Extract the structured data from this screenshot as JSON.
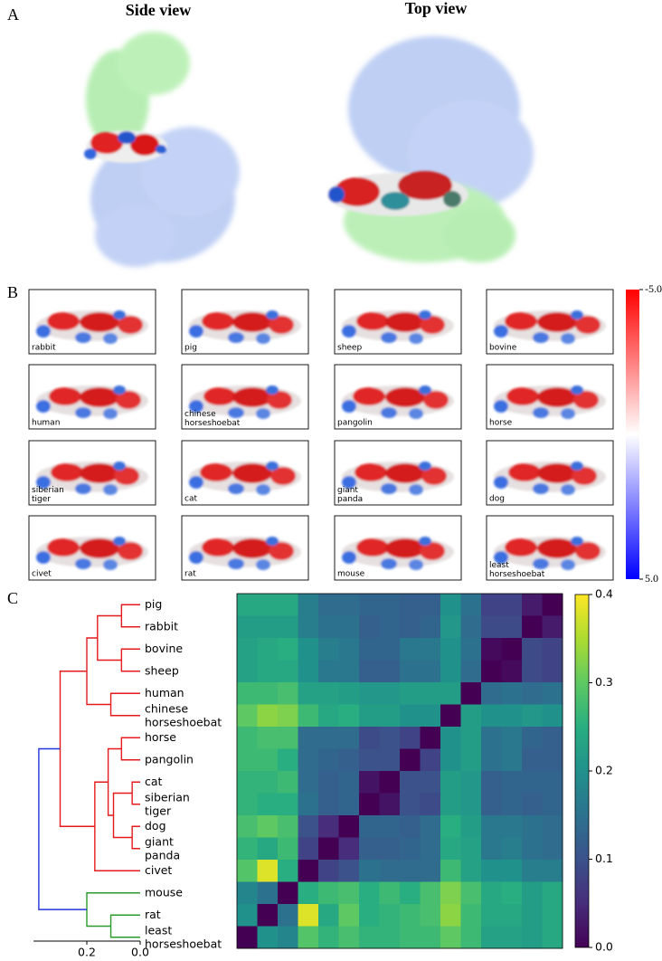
{
  "panel_a": {
    "label": "A",
    "views": [
      "Side view",
      "Top view"
    ]
  },
  "panel_b": {
    "label": "B",
    "species": [
      "rabbit",
      "pig",
      "sheep",
      "bovine",
      "human",
      "chinese horseshoebat",
      "pangolin",
      "horse",
      "siberian tiger",
      "cat",
      "giant panda",
      "dog",
      "civet",
      "rat",
      "mouse",
      "least horseshoebat"
    ],
    "colorbar": {
      "lim": [
        -5,
        5
      ],
      "colors": [
        "#ff0000",
        "#ffffff",
        "#0000ff"
      ],
      "ticks": [
        {
          "value": -5,
          "label": "-5.0"
        },
        {
          "value": 5,
          "label": "5.0"
        }
      ]
    }
  },
  "panel_c": {
    "label": "C"
  },
  "chart_data": [
    {
      "type": "heatmap",
      "colormap": "viridis",
      "rows": [
        "pig",
        "rabbit",
        "bovine",
        "sheep",
        "human",
        "chinese horseshoebat",
        "horse",
        "pangolin",
        "cat",
        "siberian tiger",
        "dog",
        "giant panda",
        "civet",
        "mouse",
        "rat",
        "least horseshoebat"
      ],
      "values": [
        [
          0.24,
          0.24,
          0.24,
          0.17,
          0.14,
          0.14,
          0.13,
          0.13,
          0.12,
          0.12,
          0.2,
          0.15,
          0.08,
          0.08,
          0.03,
          0
        ],
        [
          0.22,
          0.22,
          0.22,
          0.17,
          0.15,
          0.15,
          0.12,
          0.13,
          0.12,
          0.13,
          0.21,
          0.14,
          0.09,
          0.09,
          0,
          0.03
        ],
        [
          0.23,
          0.24,
          0.25,
          0.2,
          0.17,
          0.16,
          0.13,
          0.13,
          0.16,
          0.16,
          0.2,
          0.15,
          0.01,
          0,
          0.09,
          0.08
        ],
        [
          0.23,
          0.24,
          0.24,
          0.2,
          0.16,
          0.16,
          0.12,
          0.12,
          0.15,
          0.15,
          0.2,
          0.14,
          0,
          0.01,
          0.09,
          0.08
        ],
        [
          0.27,
          0.27,
          0.28,
          0.23,
          0.23,
          0.22,
          0.21,
          0.21,
          0.22,
          0.22,
          0.22,
          0,
          0.14,
          0.15,
          0.14,
          0.15
        ],
        [
          0.3,
          0.33,
          0.32,
          0.27,
          0.24,
          0.25,
          0.22,
          0.22,
          0.2,
          0.2,
          0,
          0.22,
          0.2,
          0.2,
          0.21,
          0.2
        ],
        [
          0.27,
          0.28,
          0.28,
          0.14,
          0.14,
          0.14,
          0.09,
          0.1,
          0.08,
          0,
          0.2,
          0.22,
          0.15,
          0.16,
          0.13,
          0.12
        ],
        [
          0.27,
          0.27,
          0.25,
          0.14,
          0.13,
          0.12,
          0.1,
          0.1,
          0,
          0.08,
          0.2,
          0.22,
          0.15,
          0.16,
          0.12,
          0.12
        ],
        [
          0.26,
          0.26,
          0.27,
          0.14,
          0.12,
          0.13,
          0.02,
          0,
          0.1,
          0.1,
          0.22,
          0.21,
          0.12,
          0.13,
          0.13,
          0.13
        ],
        [
          0.26,
          0.25,
          0.25,
          0.15,
          0.12,
          0.13,
          0,
          0.02,
          0.1,
          0.09,
          0.22,
          0.21,
          0.12,
          0.13,
          0.12,
          0.13
        ],
        [
          0.28,
          0.3,
          0.28,
          0.1,
          0.05,
          0,
          0.13,
          0.13,
          0.12,
          0.14,
          0.25,
          0.22,
          0.16,
          0.16,
          0.15,
          0.14
        ],
        [
          0.26,
          0.24,
          0.27,
          0.08,
          0,
          0.05,
          0.12,
          0.12,
          0.13,
          0.14,
          0.24,
          0.23,
          0.16,
          0.17,
          0.15,
          0.14
        ],
        [
          0.29,
          0.38,
          0.25,
          0,
          0.08,
          0.1,
          0.15,
          0.14,
          0.14,
          0.14,
          0.27,
          0.23,
          0.2,
          0.2,
          0.17,
          0.17
        ],
        [
          0.18,
          0.15,
          0,
          0.25,
          0.27,
          0.28,
          0.25,
          0.27,
          0.25,
          0.28,
          0.32,
          0.28,
          0.24,
          0.25,
          0.22,
          0.24
        ],
        [
          0.2,
          0,
          0.15,
          0.38,
          0.24,
          0.3,
          0.25,
          0.26,
          0.27,
          0.28,
          0.33,
          0.27,
          0.24,
          0.24,
          0.22,
          0.24
        ],
        [
          0,
          0.2,
          0.18,
          0.29,
          0.26,
          0.28,
          0.26,
          0.26,
          0.27,
          0.27,
          0.3,
          0.27,
          0.23,
          0.23,
          0.22,
          0.24
        ]
      ],
      "vlim": [
        0,
        0.4
      ],
      "ticks": [
        {
          "value": 0,
          "label": "0.0"
        },
        0.1,
        0.2,
        0.3,
        0.4
      ]
    },
    {
      "type": "dendrogram",
      "xlim": [
        0.4,
        0
      ],
      "xticks": [
        0.2,
        {
          "value": 0,
          "label": "0.0"
        }
      ],
      "links": [
        {
          "pair": [
            0,
            1
          ],
          "height": 0.07,
          "color": "#e41a1c"
        },
        {
          "pair": [
            2,
            3
          ],
          "height": 0.07,
          "color": "#e41a1c"
        },
        {
          "pair": [
            16,
            17
          ],
          "height": 0.16,
          "color": "#e41a1c"
        },
        {
          "pair": [
            4,
            5
          ],
          "height": 0.11,
          "color": "#e41a1c"
        },
        {
          "pair": [
            18,
            19
          ],
          "height": 0.2,
          "color": "#e41a1c"
        },
        {
          "pair": [
            6,
            7
          ],
          "height": 0.07,
          "color": "#e41a1c"
        },
        {
          "pair": [
            8,
            9
          ],
          "height": 0.03,
          "color": "#e41a1c"
        },
        {
          "pair": [
            10,
            11
          ],
          "height": 0.03,
          "color": "#e41a1c"
        },
        {
          "pair": [
            22,
            23
          ],
          "height": 0.1,
          "color": "#e41a1c"
        },
        {
          "pair": [
            21,
            24
          ],
          "height": 0.12,
          "color": "#e41a1c"
        },
        {
          "pair": [
            25,
            12
          ],
          "height": 0.17,
          "color": "#e41a1c"
        },
        {
          "pair": [
            20,
            26
          ],
          "height": 0.3,
          "color": "#e41a1c"
        },
        {
          "pair": [
            14,
            15
          ],
          "height": 0.11,
          "color": "#2a9a2a"
        },
        {
          "pair": [
            13,
            28
          ],
          "height": 0.2,
          "color": "#2a9a2a"
        },
        {
          "pair": [
            27,
            29
          ],
          "height": 0.38,
          "color": "#2233dd"
        }
      ]
    }
  ]
}
